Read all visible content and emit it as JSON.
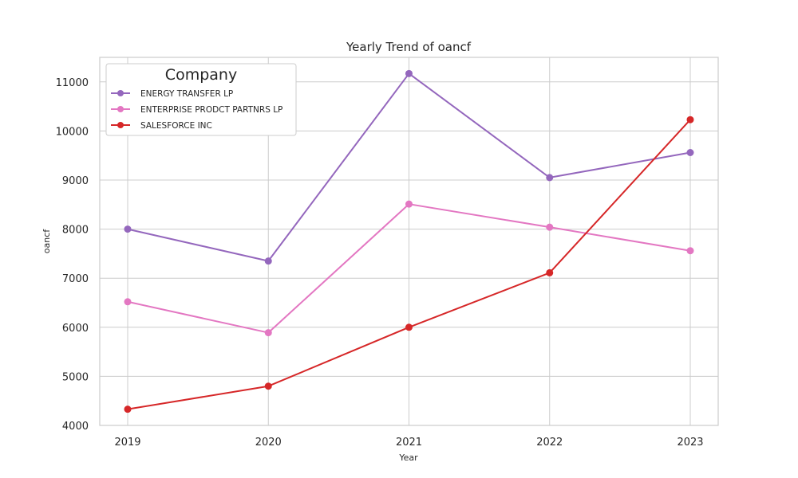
{
  "chart_data": {
    "type": "line",
    "title": "Yearly Trend of oancf",
    "xlabel": "Year",
    "ylabel": "oancf",
    "categories": [
      "2019",
      "2020",
      "2021",
      "2022",
      "2023"
    ],
    "ylim": [
      4000,
      11500
    ],
    "yticks": [
      4000,
      5000,
      6000,
      7000,
      8000,
      9000,
      10000,
      11000
    ],
    "grid": true,
    "legend": {
      "title": "Company",
      "placement": "top-left"
    },
    "series": [
      {
        "name": "ENERGY TRANSFER LP",
        "color": "#9467bd",
        "values": [
          8000,
          7350,
          11170,
          9050,
          9560
        ]
      },
      {
        "name": "ENTERPRISE PRODCT PARTNRS LP",
        "color": "#e377c2",
        "values": [
          6520,
          5890,
          8510,
          8040,
          7560
        ]
      },
      {
        "name": "SALESFORCE INC",
        "color": "#d62728",
        "values": [
          4330,
          4800,
          6000,
          7110,
          10230
        ]
      }
    ]
  }
}
